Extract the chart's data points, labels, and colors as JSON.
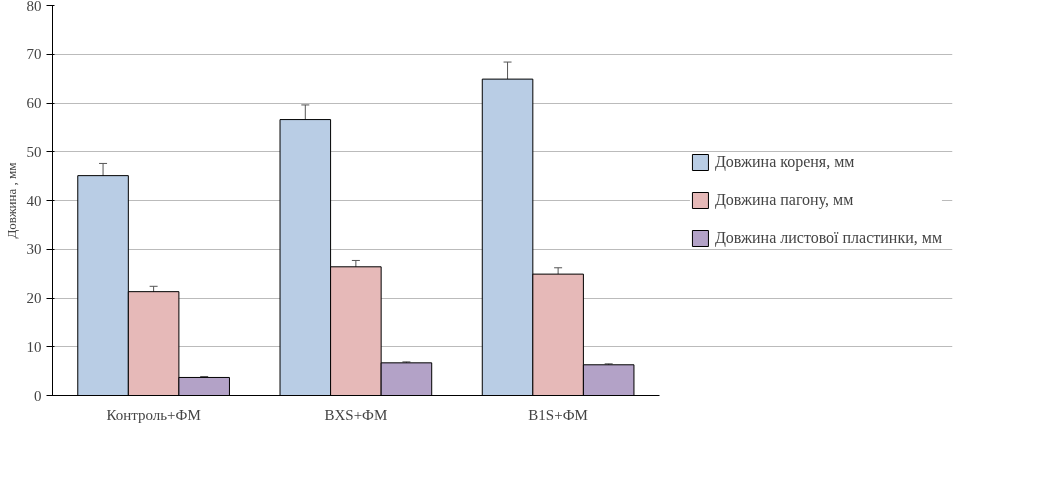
{
  "chart_data": {
    "type": "bar",
    "ylabel": "Довжина , мм",
    "categories": [
      "Контроль+ФМ",
      "BXS+ФМ",
      "B1S+ФМ"
    ],
    "series": [
      {
        "name": "Довжина кореня, мм",
        "color": "#b9cde5",
        "values": [
          45.1,
          56.6,
          64.9
        ],
        "errors": [
          2.5,
          3,
          3.5
        ]
      },
      {
        "name": "Довжина пагону, мм",
        "color": "#e6b9b8",
        "values": [
          21.3,
          26.4,
          24.9
        ],
        "errors": [
          1.1,
          1.3,
          1.3
        ]
      },
      {
        "name": "Довжина листової пластинки, мм",
        "color": "#b3a2c7",
        "values": [
          3.7,
          6.7,
          6.3
        ],
        "errors": [
          0.2,
          0.2,
          0.2
        ]
      }
    ],
    "ylim": [
      0,
      80
    ],
    "yticks": [
      0,
      10,
      20,
      30,
      40,
      50,
      60,
      70,
      80
    ],
    "grid": "y",
    "legend": "right"
  }
}
